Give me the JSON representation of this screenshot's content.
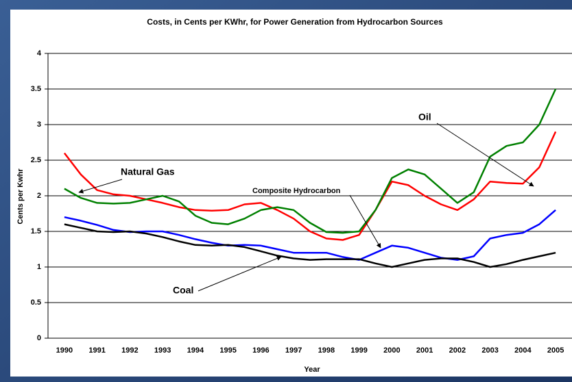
{
  "chart_data": {
    "type": "line",
    "title": "Costs, in Cents per KWhr, for Power Generation from Hydrocarbon Sources",
    "x_label": "Year",
    "y_label": "Cents per Kwhr",
    "x": [
      1990,
      1990.5,
      1991,
      1991.5,
      1992,
      1992.5,
      1993,
      1993.5,
      1994,
      1994.5,
      1995,
      1995.5,
      1996,
      1996.5,
      1997,
      1997.5,
      1998,
      1998.5,
      1999,
      1999.5,
      2000,
      2000.5,
      2001,
      2001.5,
      2002,
      2002.5,
      2003,
      2003.5,
      2004,
      2004.5,
      2005
    ],
    "xlim": [
      1989.5,
      2005.5
    ],
    "xticks": [
      1990,
      1991,
      1992,
      1993,
      1994,
      1995,
      1996,
      1997,
      1998,
      1999,
      2000,
      2001,
      2002,
      2003,
      2004,
      2005
    ],
    "ylim": [
      0,
      4
    ],
    "yticks": [
      0,
      0.5,
      1,
      1.5,
      2,
      2.5,
      3,
      3.5,
      4
    ],
    "grid": true,
    "series": [
      {
        "name": "Oil",
        "color": "#ff0000",
        "values": [
          2.6,
          2.3,
          2.08,
          2.02,
          2.0,
          1.95,
          1.9,
          1.84,
          1.8,
          1.79,
          1.8,
          1.88,
          1.9,
          1.8,
          1.68,
          1.5,
          1.4,
          1.38,
          1.45,
          1.8,
          2.2,
          2.15,
          2.0,
          1.88,
          1.8,
          1.95,
          2.2,
          2.18,
          2.17,
          2.4,
          2.9
        ]
      },
      {
        "name": "Natural Gas",
        "color": "#008000",
        "values": [
          2.1,
          1.97,
          1.9,
          1.89,
          1.9,
          1.95,
          2.0,
          1.92,
          1.72,
          1.62,
          1.6,
          1.68,
          1.8,
          1.84,
          1.8,
          1.62,
          1.49,
          1.48,
          1.5,
          1.8,
          2.25,
          2.37,
          2.3,
          2.1,
          1.9,
          2.05,
          2.55,
          2.7,
          2.75,
          3.0,
          3.5
        ]
      },
      {
        "name": "Composite Hydrocarbon",
        "color": "#0000ff",
        "values": [
          1.7,
          1.65,
          1.59,
          1.52,
          1.49,
          1.5,
          1.5,
          1.45,
          1.39,
          1.34,
          1.3,
          1.31,
          1.3,
          1.25,
          1.2,
          1.2,
          1.2,
          1.14,
          1.1,
          1.2,
          1.3,
          1.27,
          1.2,
          1.13,
          1.1,
          1.15,
          1.4,
          1.45,
          1.48,
          1.6,
          1.8
        ]
      },
      {
        "name": "Coal",
        "color": "#000000",
        "values": [
          1.6,
          1.55,
          1.5,
          1.49,
          1.5,
          1.47,
          1.42,
          1.36,
          1.31,
          1.3,
          1.31,
          1.28,
          1.22,
          1.16,
          1.12,
          1.1,
          1.11,
          1.11,
          1.11,
          1.05,
          1.0,
          1.05,
          1.1,
          1.12,
          1.12,
          1.07,
          1.0,
          1.04,
          1.1,
          1.15,
          1.2
        ]
      }
    ]
  }
}
